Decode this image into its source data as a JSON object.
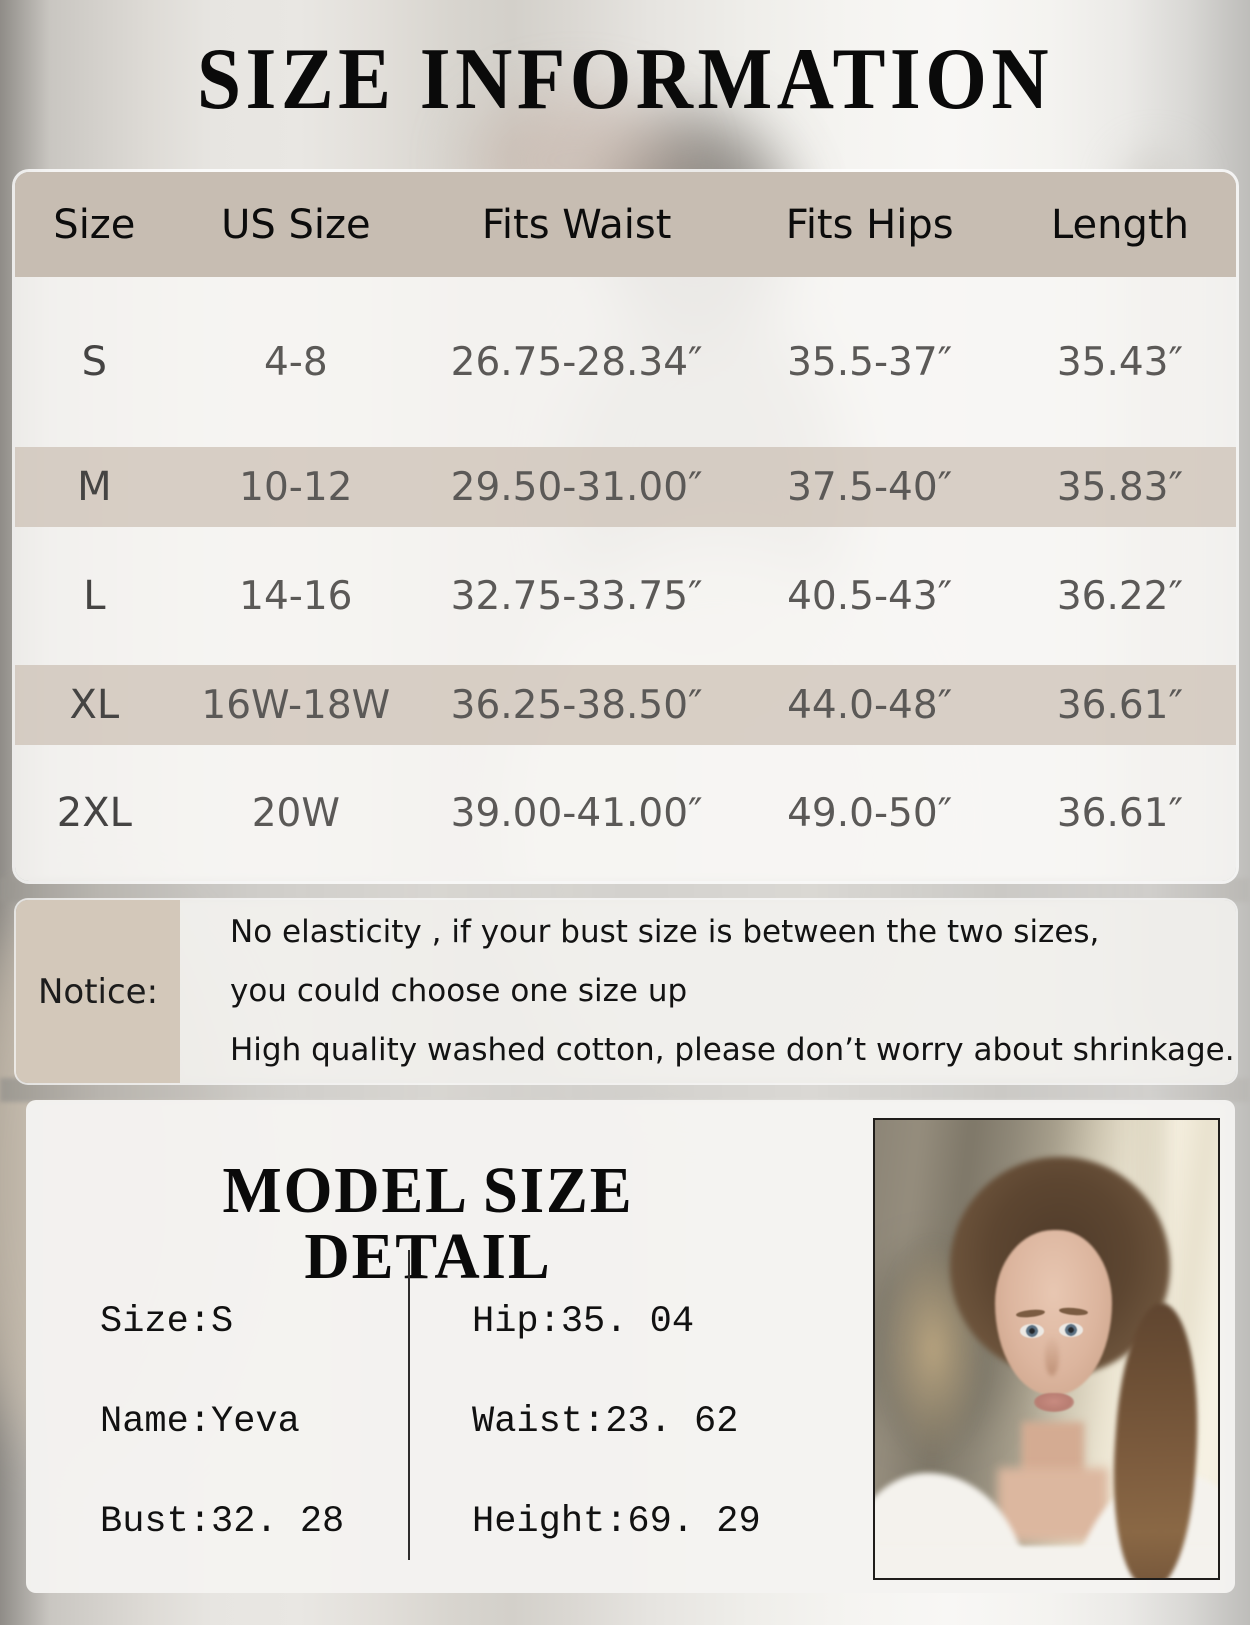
{
  "page": {
    "title": "SIZE INFORMATION"
  },
  "size_table": {
    "headers": [
      "Size",
      "US Size",
      "Fits Waist",
      "Fits Hips",
      "Length"
    ],
    "rows": [
      {
        "size": "S",
        "us_size": "4-8",
        "fits_waist": "26.75-28.34″",
        "fits_hips": "35.5-37″",
        "length": "35.43″"
      },
      {
        "size": "M",
        "us_size": "10-12",
        "fits_waist": "29.50-31.00″",
        "fits_hips": "37.5-40″",
        "length": "35.83″"
      },
      {
        "size": "L",
        "us_size": "14-16",
        "fits_waist": "32.75-33.75″",
        "fits_hips": "40.5-43″",
        "length": "36.22″"
      },
      {
        "size": "XL",
        "us_size": "16W-18W",
        "fits_waist": "36.25-38.50″",
        "fits_hips": "44.0-48″",
        "length": "36.61″"
      },
      {
        "size": "2XL",
        "us_size": "20W",
        "fits_waist": "39.00-41.00″",
        "fits_hips": "49.0-50″",
        "length": "36.61″"
      }
    ]
  },
  "notice": {
    "label": "Notice:",
    "lines": [
      "No elasticity , if your bust size is between the two sizes,",
      "you could choose one size up",
      "High quality washed cotton, please don’t worry about shrinkage."
    ]
  },
  "model_detail": {
    "title": "MODEL SIZE DETAIL",
    "left_items": [
      "Size:S",
      "Name:Yeva",
      "Bust:32. 28"
    ],
    "right_items": [
      "Hip:35. 04",
      "Waist:23. 62",
      "Height:69. 29"
    ]
  },
  "colors": {
    "header_beige": "#c7bdb2",
    "stripe_beige": "#d6cdc4",
    "notice_beige": "#d3c8ba",
    "panel_light": "#f4f3f1",
    "value_text": "#5b5957"
  }
}
